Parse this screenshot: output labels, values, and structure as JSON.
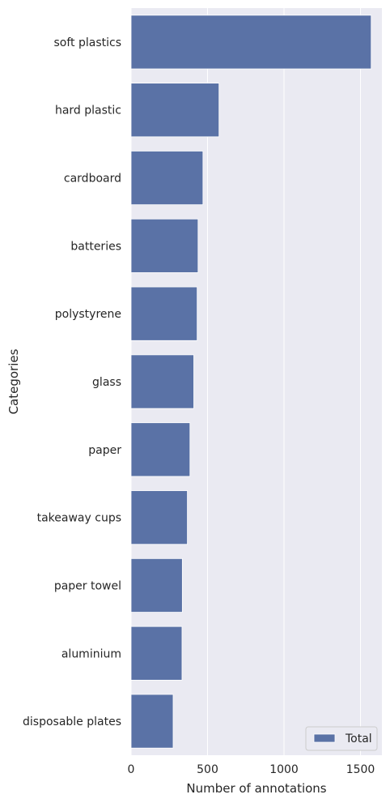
{
  "chart_data": {
    "type": "bar",
    "orientation": "horizontal",
    "categories": [
      "soft plastics",
      "hard plastic",
      "cardboard",
      "batteries",
      "polystyrene",
      "glass",
      "paper",
      "takeaway cups",
      "paper towel",
      "aluminium",
      "disposable plates"
    ],
    "series": [
      {
        "name": "Total",
        "values": [
          1570,
          575,
          470,
          438,
          432,
          410,
          385,
          368,
          335,
          333,
          275
        ],
        "color": "#5a72a6"
      }
    ],
    "xlabel": "Number of annotations",
    "ylabel": "Categories",
    "xlim": [
      0,
      1640
    ],
    "xticks": [
      0,
      500,
      1000,
      1500
    ],
    "grid": true,
    "legend": {
      "position": "lower-right"
    },
    "colors": {
      "plot_background": "#eaeaf2",
      "grid": "#ffffff"
    }
  }
}
